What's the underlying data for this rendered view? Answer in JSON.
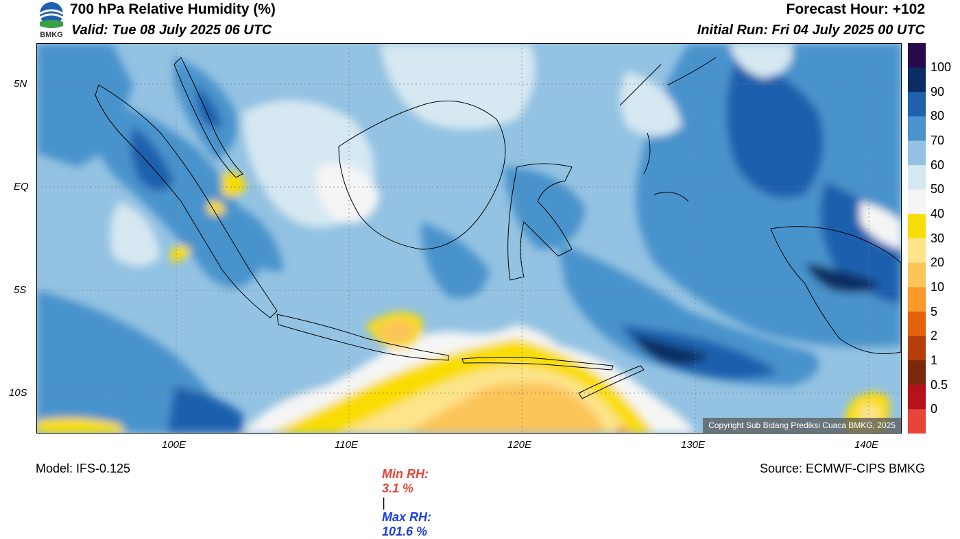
{
  "header": {
    "title": "700 hPa Relative Humidity (%)",
    "valid": "Valid: Tue 08 July 2025 06 UTC",
    "forecast_hour": "Forecast Hour: +102",
    "initial_run": "Initial Run: Fri 04 July 2025 00 UTC",
    "logo_text": "BMKG"
  },
  "axes": {
    "lat_labels": [
      "5N",
      "EQ",
      "5S",
      "10S"
    ],
    "lon_labels": [
      "100E",
      "110E",
      "120E",
      "130E",
      "140E"
    ]
  },
  "colorbar": {
    "labels": [
      "100",
      "90",
      "80",
      "70",
      "60",
      "50",
      "40",
      "30",
      "20",
      "10",
      "5",
      "2",
      "1",
      "0.5",
      "0"
    ],
    "colors": [
      "#2a0a4e",
      "#0b2d63",
      "#1f61ad",
      "#4a93cc",
      "#93c2e2",
      "#d6e8f2",
      "#f5f5f5",
      "#f9dd05",
      "#fde38a",
      "#fcc55a",
      "#fb9a2a",
      "#e2620b",
      "#b53e0a",
      "#7a2a0b",
      "#b5121b",
      "#e8443a"
    ]
  },
  "stats": {
    "min_label": "Min RH:",
    "min_value": "3.1 %",
    "separator": "|",
    "max_label": "Max RH:",
    "max_value": "101.6 %"
  },
  "footer": {
    "model": "Model: IFS-0.125",
    "source": "Source: ECMWF-CIPS BMKG",
    "copyright": "Copyright Sub Bidang Prediksi Cuaca BMKG, 2025"
  }
}
